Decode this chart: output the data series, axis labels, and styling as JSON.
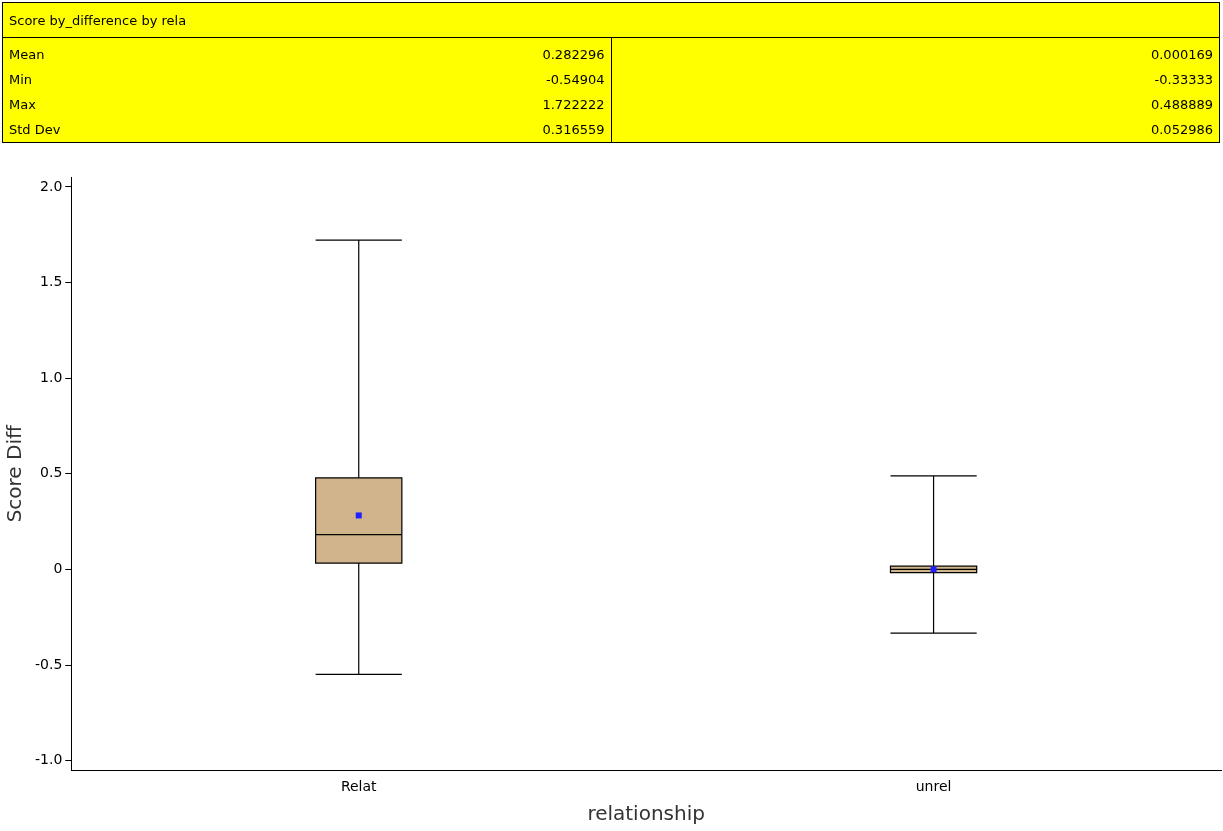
{
  "chart_data": {
    "type": "box",
    "title": "Score by_difference by rela",
    "xlabel": "relationship",
    "ylabel": "Score Diff",
    "categories": [
      "Relat",
      "unrel"
    ],
    "series": [
      {
        "color": "#d2b48c",
        "boxes": [
          {
            "low": -0.54904,
            "q1": 0.033,
            "median": 0.182,
            "q3": 0.479,
            "high": 1.722222,
            "mean": 0.282296
          },
          {
            "low": -0.33333,
            "q1": -0.017,
            "median": 0,
            "q3": 0.017,
            "high": 0.488889,
            "mean": 0.000169
          }
        ]
      }
    ],
    "ylim": [
      -1.05,
      2.05
    ],
    "yticks": [
      {
        "value": -1,
        "label": "-1.0"
      },
      -0.5,
      0,
      0.5,
      {
        "value": 1,
        "label": "1.0"
      },
      1.5,
      {
        "value": 2,
        "label": "2.0"
      }
    ],
    "annotations": [
      "Mean",
      "0.282296",
      "0.000169",
      "Min",
      "-0.54904",
      "-0.33333",
      "Max",
      "1.722222",
      "0.488889",
      "Std Dev",
      "0.316559",
      "0.052986"
    ],
    "grid": false,
    "legend": false
  }
}
